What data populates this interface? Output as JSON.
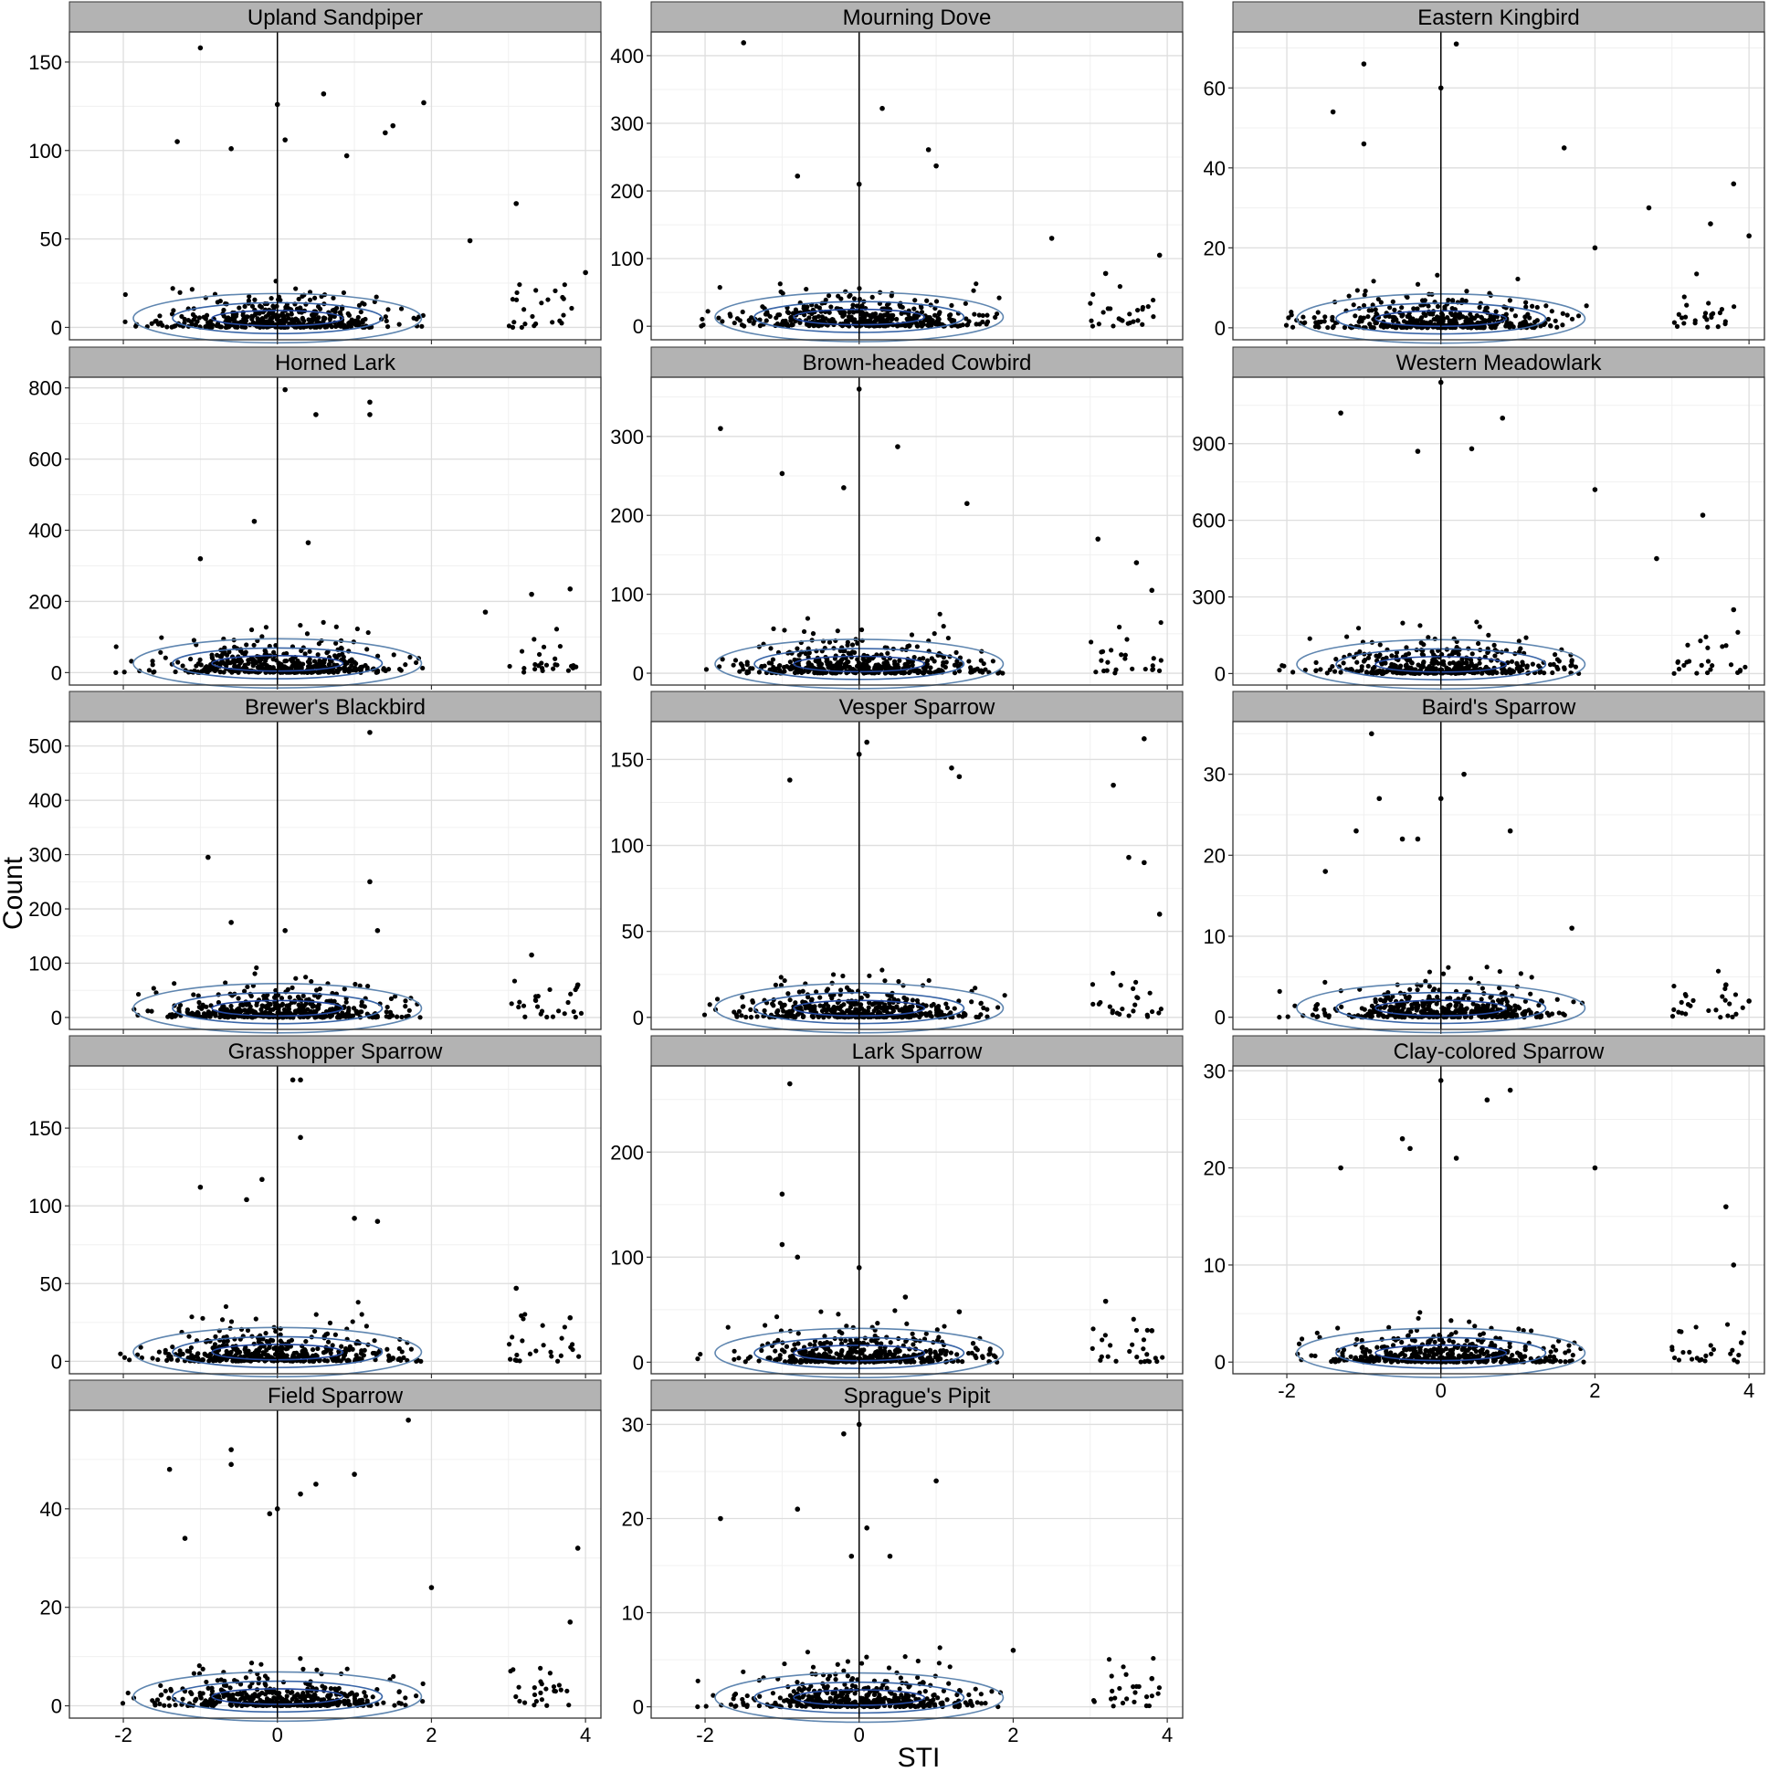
{
  "figure": {
    "ylabel": "Count",
    "xlabel": "STI"
  },
  "chart_data": [
    {
      "type": "scatter",
      "title": "Upland Sandpiper",
      "xlim": [
        -2.7,
        4.2
      ],
      "ylim": [
        -7,
        167
      ],
      "xticks": [
        -2,
        0,
        2,
        4
      ],
      "yticks": [
        0,
        50,
        100,
        150
      ],
      "show_x_tick_labels": false,
      "density": "contour",
      "notable_points": [
        [
          -1.0,
          158
        ],
        [
          0.6,
          132
        ],
        [
          1.9,
          127
        ],
        [
          0.0,
          126
        ],
        [
          1.5,
          114
        ],
        [
          1.4,
          110
        ],
        [
          0.1,
          106
        ],
        [
          -1.3,
          105
        ],
        [
          -0.6,
          101
        ],
        [
          0.9,
          97
        ],
        [
          3.1,
          70
        ],
        [
          2.5,
          49
        ],
        [
          4.0,
          31
        ]
      ]
    },
    {
      "type": "scatter",
      "title": "Mourning Dove",
      "xlim": [
        -2.7,
        4.2
      ],
      "ylim": [
        -20,
        435
      ],
      "xticks": [
        -2,
        0,
        2,
        4
      ],
      "yticks": [
        0,
        100,
        200,
        300,
        400
      ],
      "show_x_tick_labels": false,
      "density": "contour",
      "notable_points": [
        [
          -1.5,
          419
        ],
        [
          0.3,
          322
        ],
        [
          0.9,
          261
        ],
        [
          1.0,
          237
        ],
        [
          -0.8,
          222
        ],
        [
          0.0,
          210
        ],
        [
          2.5,
          130
        ],
        [
          3.9,
          105
        ],
        [
          3.2,
          78
        ]
      ]
    },
    {
      "type": "scatter",
      "title": "Eastern Kingbird",
      "xlim": [
        -2.7,
        4.2
      ],
      "ylim": [
        -3,
        74
      ],
      "xticks": [
        -2,
        0,
        2,
        4
      ],
      "yticks": [
        0,
        20,
        40,
        60
      ],
      "show_x_tick_labels": false,
      "density": "contour",
      "notable_points": [
        [
          0.2,
          71
        ],
        [
          -1.0,
          66
        ],
        [
          0.0,
          60
        ],
        [
          -1.4,
          54
        ],
        [
          1.6,
          45
        ],
        [
          -1.0,
          46
        ],
        [
          3.8,
          36
        ],
        [
          2.7,
          30
        ],
        [
          3.5,
          26
        ],
        [
          4.0,
          23
        ],
        [
          2.0,
          20
        ]
      ]
    },
    {
      "type": "scatter",
      "title": "Horned Lark",
      "xlim": [
        -2.7,
        4.2
      ],
      "ylim": [
        -35,
        830
      ],
      "xticks": [
        -2,
        0,
        2,
        4
      ],
      "yticks": [
        0,
        200,
        400,
        600,
        800
      ],
      "show_x_tick_labels": false,
      "density": "contour",
      "notable_points": [
        [
          0.1,
          795
        ],
        [
          1.2,
          760
        ],
        [
          1.2,
          725
        ],
        [
          0.5,
          725
        ],
        [
          -0.3,
          425
        ],
        [
          0.4,
          365
        ],
        [
          -1.0,
          320
        ],
        [
          3.8,
          235
        ],
        [
          3.3,
          220
        ],
        [
          2.7,
          170
        ]
      ]
    },
    {
      "type": "scatter",
      "title": "Brown-headed Cowbird",
      "xlim": [
        -2.7,
        4.2
      ],
      "ylim": [
        -15,
        375
      ],
      "xticks": [
        -2,
        0,
        2,
        4
      ],
      "yticks": [
        0,
        100,
        200,
        300
      ],
      "show_x_tick_labels": false,
      "density": "contour",
      "notable_points": [
        [
          0.0,
          360
        ],
        [
          -1.8,
          310
        ],
        [
          0.5,
          287
        ],
        [
          -1.0,
          253
        ],
        [
          -0.2,
          235
        ],
        [
          1.4,
          215
        ],
        [
          3.1,
          170
        ],
        [
          3.6,
          140
        ],
        [
          3.8,
          105
        ]
      ]
    },
    {
      "type": "scatter",
      "title": "Western Meadowlark",
      "xlim": [
        -2.7,
        4.2
      ],
      "ylim": [
        -45,
        1160
      ],
      "xticks": [
        -2,
        0,
        2,
        4
      ],
      "yticks": [
        0,
        300,
        600,
        900
      ],
      "show_x_tick_labels": false,
      "density": "contour",
      "notable_points": [
        [
          0.0,
          1140
        ],
        [
          -1.3,
          1020
        ],
        [
          0.8,
          1000
        ],
        [
          -0.3,
          870
        ],
        [
          0.4,
          880
        ],
        [
          2.0,
          720
        ],
        [
          3.4,
          620
        ],
        [
          2.8,
          450
        ],
        [
          3.8,
          250
        ]
      ]
    },
    {
      "type": "scatter",
      "title": "Brewer's Blackbird",
      "xlim": [
        -2.7,
        4.2
      ],
      "ylim": [
        -22,
        545
      ],
      "xticks": [
        -2,
        0,
        2,
        4
      ],
      "yticks": [
        0,
        100,
        200,
        300,
        400,
        500
      ],
      "show_x_tick_labels": false,
      "density": "contour",
      "notable_points": [
        [
          1.2,
          525
        ],
        [
          -0.9,
          295
        ],
        [
          1.2,
          250
        ],
        [
          -0.6,
          175
        ],
        [
          0.1,
          160
        ],
        [
          1.3,
          160
        ],
        [
          3.3,
          115
        ],
        [
          3.9,
          60
        ]
      ]
    },
    {
      "type": "scatter",
      "title": "Vesper Sparrow",
      "xlim": [
        -2.7,
        4.2
      ],
      "ylim": [
        -7,
        172
      ],
      "xticks": [
        -2,
        0,
        2,
        4
      ],
      "yticks": [
        0,
        50,
        100,
        150
      ],
      "show_x_tick_labels": false,
      "density": "contour",
      "notable_points": [
        [
          3.7,
          162
        ],
        [
          0.1,
          160
        ],
        [
          0.0,
          153
        ],
        [
          1.2,
          145
        ],
        [
          1.3,
          140
        ],
        [
          3.3,
          135
        ],
        [
          -0.9,
          138
        ],
        [
          3.5,
          93
        ],
        [
          3.7,
          90
        ],
        [
          3.9,
          60
        ]
      ]
    },
    {
      "type": "scatter",
      "title": "Baird's Sparrow",
      "xlim": [
        -2.7,
        4.2
      ],
      "ylim": [
        -1.5,
        36.5
      ],
      "xticks": [
        -2,
        0,
        2,
        4
      ],
      "yticks": [
        0,
        10,
        20,
        30
      ],
      "show_x_tick_labels": false,
      "density": "contour",
      "notable_points": [
        [
          -0.9,
          35
        ],
        [
          0.3,
          30
        ],
        [
          -0.8,
          27
        ],
        [
          0.0,
          27
        ],
        [
          -1.1,
          23
        ],
        [
          0.9,
          23
        ],
        [
          -0.5,
          22
        ],
        [
          -0.3,
          22
        ],
        [
          -1.5,
          18
        ],
        [
          1.7,
          11
        ],
        [
          3.7,
          4
        ],
        [
          4.0,
          2
        ]
      ]
    },
    {
      "type": "scatter",
      "title": "Grasshopper Sparrow",
      "xlim": [
        -2.7,
        4.2
      ],
      "ylim": [
        -8,
        190
      ],
      "xticks": [
        -2,
        0,
        2,
        4
      ],
      "yticks": [
        0,
        50,
        100,
        150
      ],
      "show_x_tick_labels": false,
      "density": "contour",
      "notable_points": [
        [
          0.2,
          181
        ],
        [
          0.3,
          181
        ],
        [
          0.3,
          144
        ],
        [
          -0.2,
          117
        ],
        [
          -1.0,
          112
        ],
        [
          -0.4,
          104
        ],
        [
          1.0,
          92
        ],
        [
          1.3,
          90
        ],
        [
          3.1,
          47
        ],
        [
          3.8,
          28
        ]
      ]
    },
    {
      "type": "scatter",
      "title": "Lark Sparrow",
      "xlim": [
        -2.7,
        4.2
      ],
      "ylim": [
        -11,
        282
      ],
      "xticks": [
        -2,
        0,
        2,
        4
      ],
      "yticks": [
        0,
        100,
        200
      ],
      "show_x_tick_labels": false,
      "density": "contour",
      "notable_points": [
        [
          -0.9,
          265
        ],
        [
          -1.0,
          160
        ],
        [
          -1.0,
          112
        ],
        [
          -0.8,
          100
        ],
        [
          0.0,
          90
        ],
        [
          0.6,
          62
        ],
        [
          1.3,
          48
        ],
        [
          3.2,
          58
        ],
        [
          3.8,
          30
        ]
      ]
    },
    {
      "type": "scatter",
      "title": "Clay-colored Sparrow",
      "xlim": [
        -2.7,
        4.2
      ],
      "ylim": [
        -1.2,
        30.5
      ],
      "xticks": [
        -2,
        0,
        2,
        4
      ],
      "yticks": [
        0,
        10,
        20,
        30
      ],
      "show_x_tick_labels": true,
      "density": "contour",
      "notable_points": [
        [
          0.0,
          29
        ],
        [
          0.9,
          28
        ],
        [
          0.6,
          27
        ],
        [
          -0.5,
          23
        ],
        [
          -0.4,
          22
        ],
        [
          0.2,
          21
        ],
        [
          -1.3,
          20
        ],
        [
          2.0,
          20
        ],
        [
          3.7,
          16
        ],
        [
          3.8,
          10
        ],
        [
          3.9,
          2
        ]
      ]
    },
    {
      "type": "scatter",
      "title": "Field Sparrow",
      "xlim": [
        -2.7,
        4.2
      ],
      "ylim": [
        -2.5,
        60
      ],
      "xticks": [
        -2,
        0,
        2,
        4
      ],
      "yticks": [
        0,
        20,
        40
      ],
      "show_x_tick_labels": true,
      "density": "contour",
      "notable_points": [
        [
          1.7,
          58
        ],
        [
          -0.6,
          52
        ],
        [
          -0.6,
          49
        ],
        [
          -1.4,
          48
        ],
        [
          1.0,
          47
        ],
        [
          0.5,
          45
        ],
        [
          0.3,
          43
        ],
        [
          0.0,
          40
        ],
        [
          -0.1,
          39
        ],
        [
          -1.2,
          34
        ],
        [
          3.9,
          32
        ],
        [
          2.0,
          24
        ],
        [
          3.8,
          17
        ]
      ]
    },
    {
      "type": "scatter",
      "title": "Sprague's Pipit",
      "xlim": [
        -2.7,
        4.2
      ],
      "ylim": [
        -1.2,
        31.5
      ],
      "xticks": [
        -2,
        0,
        2,
        4
      ],
      "yticks": [
        0,
        10,
        20,
        30
      ],
      "show_x_tick_labels": true,
      "density": "contour",
      "notable_points": [
        [
          0.0,
          30
        ],
        [
          -0.2,
          29
        ],
        [
          1.0,
          24
        ],
        [
          -1.8,
          20
        ],
        [
          -0.8,
          21
        ],
        [
          0.1,
          19
        ],
        [
          0.4,
          16
        ],
        [
          -0.1,
          16
        ],
        [
          2.0,
          6
        ],
        [
          3.8,
          3
        ]
      ]
    }
  ]
}
